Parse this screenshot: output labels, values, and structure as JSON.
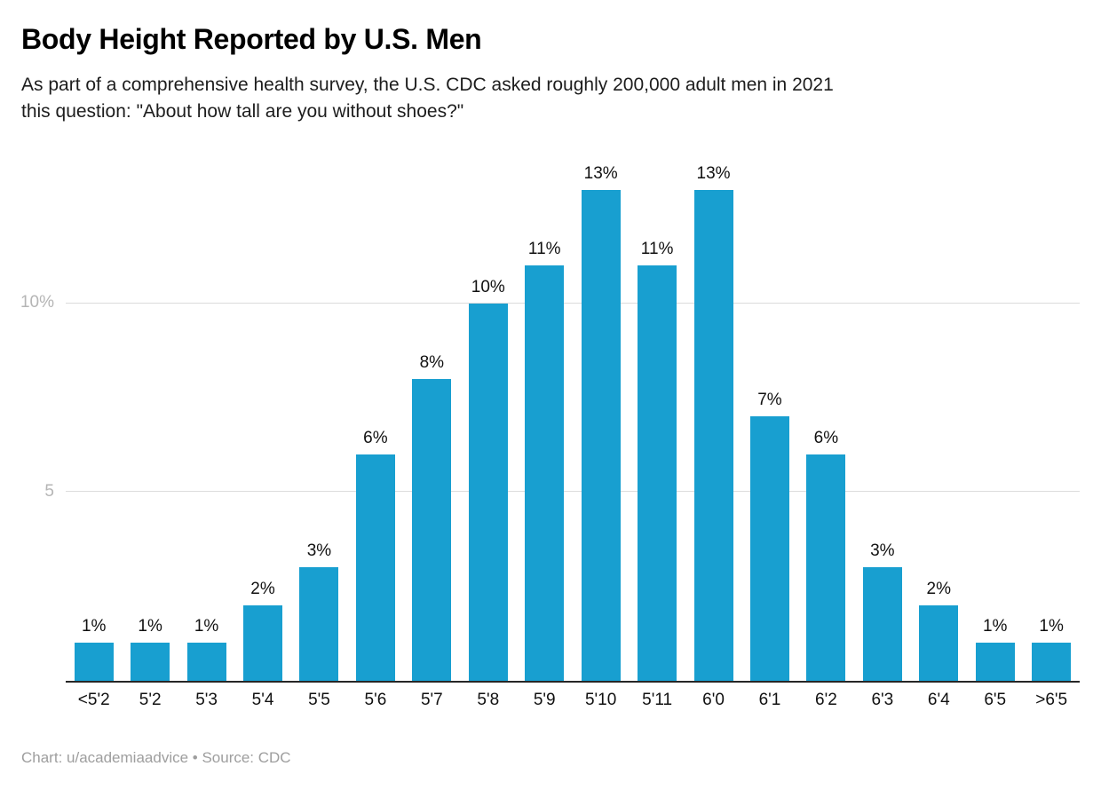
{
  "header": {
    "title": "Body Height Reported by U.S. Men",
    "subtitle": "As part of a comprehensive health survey, the U.S. CDC asked roughly 200,000 adult men in 2021\nthis question: \"About how tall are you without shoes?\""
  },
  "footer": {
    "credit": "Chart: u/academiaadvice • Source: CDC"
  },
  "chart_data": {
    "type": "bar",
    "title": "Body Height Reported by U.S. Men",
    "categories": [
      "<5'2",
      "5'2",
      "5'3",
      "5'4",
      "5'5",
      "5'6",
      "5'7",
      "5'8",
      "5'9",
      "5'10",
      "5'11",
      "6'0",
      "6'1",
      "6'2",
      "6'3",
      "6'4",
      "6'5",
      ">6'5"
    ],
    "values": [
      1,
      1,
      1,
      2,
      3,
      6,
      8,
      10,
      11,
      13,
      11,
      13,
      7,
      6,
      3,
      2,
      1,
      1
    ],
    "data_labels": [
      "1%",
      "1%",
      "1%",
      "2%",
      "3%",
      "6%",
      "8%",
      "10%",
      "11%",
      "13%",
      "11%",
      "13%",
      "7%",
      "6%",
      "3%",
      "2%",
      "1%",
      "1%"
    ],
    "xlabel": "",
    "ylabel": "",
    "ylim": [
      0,
      13.5
    ],
    "yticks": [
      {
        "value": 5,
        "label": "5"
      },
      {
        "value": 10,
        "label": "10%"
      }
    ],
    "grid": "horizontal",
    "legend": "none",
    "bar_color": "#189fd0",
    "axis_line_color": "#262626",
    "gridline_color": "#dcdcdc"
  }
}
